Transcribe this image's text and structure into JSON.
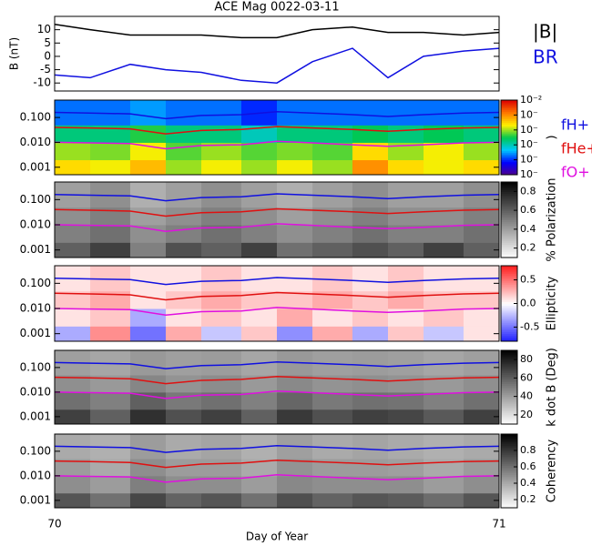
{
  "chart_data": [
    {
      "type": "line",
      "title": "ACE Mag 0022-03-11",
      "ylabel": "B (nT)",
      "x": [
        70,
        70.08,
        70.17,
        70.25,
        70.33,
        70.42,
        70.5,
        70.58,
        70.67,
        70.75,
        70.83,
        70.92,
        71
      ],
      "series": [
        {
          "name": "|B|",
          "color": "#000000",
          "values": [
            12,
            10,
            8,
            8,
            8,
            7,
            7,
            10,
            11,
            9,
            9,
            8,
            9
          ]
        },
        {
          "name": "BR",
          "color": "#1010e0",
          "values": [
            -7,
            -8,
            -3,
            -5,
            -6,
            -9,
            -10,
            -2,
            3,
            -8,
            0,
            2,
            3
          ]
        }
      ],
      "xlim": [
        70,
        71
      ],
      "ylim": [
        -13,
        15
      ],
      "yticks": [
        -10,
        -5,
        0,
        5,
        10
      ]
    },
    {
      "type": "heatmap",
      "colormap": "rainbow",
      "ylog": true,
      "zlog": true,
      "colorbar_label": ")",
      "xbins": [
        70,
        70.08,
        70.17,
        70.25,
        70.33,
        70.42,
        70.5,
        70.58,
        70.67,
        70.75,
        70.83,
        70.92,
        71
      ],
      "ybins": [
        0.0005,
        0.002,
        0.01,
        0.05,
        0.5
      ],
      "z": [
        [
          0.0003,
          0.0002,
          0.0005,
          0.0001,
          0.0002,
          0.0001,
          0.0002,
          0.0001,
          0.001,
          0.0003,
          0.0002,
          0.0003
        ],
        [
          0.0001,
          8e-05,
          0.0002,
          6e-05,
          0.0001,
          6e-05,
          8e-05,
          6e-05,
          0.0003,
          0.0001,
          0.0002,
          0.0001
        ],
        [
          2e-05,
          2e-05,
          4e-05,
          2e-05,
          2e-05,
          1e-05,
          2e-05,
          2e-05,
          3e-05,
          2e-05,
          3e-05,
          2e-05
        ],
        [
          2e-06,
          2e-06,
          3e-06,
          2e-06,
          2e-06,
          1e-06,
          2e-06,
          2e-06,
          2e-06,
          2e-06,
          2e-06,
          2e-06
        ]
      ],
      "zlim": [
        1e-07,
        0.01
      ],
      "zticks": [
        {
          "value": 0.01,
          "label": "10⁻²"
        },
        {
          "value": 0.001,
          "label": "10⁻"
        },
        {
          "value": 0.0001,
          "label": "10⁻"
        },
        {
          "value": 1e-05,
          "label": "10⁻"
        },
        {
          "value": 1e-06,
          "label": "10⁻"
        },
        {
          "value": 1e-07,
          "label": "10⁻"
        }
      ],
      "x": [
        70,
        70.08,
        70.17,
        70.25,
        70.33,
        70.42,
        70.5,
        70.58,
        70.67,
        70.75,
        70.83,
        70.92,
        71
      ],
      "series": [
        {
          "name": "fH+",
          "color": "#1010e0",
          "values": [
            0.16,
            0.15,
            0.14,
            0.09,
            0.12,
            0.13,
            0.17,
            0.15,
            0.13,
            0.11,
            0.13,
            0.15,
            0.16
          ]
        },
        {
          "name": "fHe+",
          "color": "#e01010",
          "values": [
            0.04,
            0.038,
            0.035,
            0.022,
            0.03,
            0.033,
            0.043,
            0.038,
            0.033,
            0.028,
            0.033,
            0.038,
            0.04
          ]
        },
        {
          "name": "fO+",
          "color": "#e010e0",
          "values": [
            0.01,
            0.0095,
            0.009,
            0.0055,
            0.0075,
            0.008,
            0.011,
            0.0095,
            0.008,
            0.007,
            0.008,
            0.0095,
            0.01
          ]
        }
      ],
      "xlim": [
        70,
        71
      ],
      "ylim": [
        0.0005,
        0.5
      ],
      "yticks": [
        0.001,
        {
          "value": 0.01,
          "label": "0.010"
        },
        {
          "value": 0.1,
          "label": "0.100"
        }
      ]
    },
    {
      "type": "heatmap",
      "colormap": "gray",
      "ylog": true,
      "colorbar_label": "% Polarization",
      "xbins": [
        70,
        70.08,
        70.17,
        70.25,
        70.33,
        70.42,
        70.5,
        70.58,
        70.67,
        70.75,
        70.83,
        70.92,
        71
      ],
      "ybins": [
        0.0005,
        0.002,
        0.01,
        0.05,
        0.5
      ],
      "z": [
        [
          0.6,
          0.7,
          0.5,
          0.65,
          0.6,
          0.7,
          0.55,
          0.6,
          0.65,
          0.6,
          0.7,
          0.6
        ],
        [
          0.5,
          0.55,
          0.45,
          0.5,
          0.55,
          0.5,
          0.45,
          0.5,
          0.55,
          0.5,
          0.5,
          0.55
        ],
        [
          0.45,
          0.5,
          0.4,
          0.45,
          0.5,
          0.45,
          0.4,
          0.45,
          0.5,
          0.45,
          0.45,
          0.5
        ],
        [
          0.4,
          0.45,
          0.35,
          0.4,
          0.45,
          0.4,
          0.35,
          0.4,
          0.45,
          0.4,
          0.4,
          0.45
        ]
      ],
      "zlim": [
        0.1,
        0.9
      ],
      "zticks": [
        0.2,
        0.4,
        0.6,
        0.8
      ],
      "x": [
        70,
        70.08,
        70.17,
        70.25,
        70.33,
        70.42,
        70.5,
        70.58,
        70.67,
        70.75,
        70.83,
        70.92,
        71
      ],
      "series": [
        {
          "color": "#1010e0",
          "values": [
            0.16,
            0.15,
            0.14,
            0.09,
            0.12,
            0.13,
            0.17,
            0.15,
            0.13,
            0.11,
            0.13,
            0.15,
            0.16
          ]
        },
        {
          "color": "#e01010",
          "values": [
            0.04,
            0.038,
            0.035,
            0.022,
            0.03,
            0.033,
            0.043,
            0.038,
            0.033,
            0.028,
            0.033,
            0.038,
            0.04
          ]
        },
        {
          "color": "#e010e0",
          "values": [
            0.01,
            0.0095,
            0.009,
            0.0055,
            0.0075,
            0.008,
            0.011,
            0.0095,
            0.008,
            0.007,
            0.008,
            0.0095,
            0.01
          ]
        }
      ],
      "xlim": [
        70,
        71
      ],
      "ylim": [
        0.0005,
        0.5
      ],
      "yticks": [
        0.001,
        {
          "value": 0.01,
          "label": "0.010"
        },
        {
          "value": 0.1,
          "label": "0.100"
        }
      ]
    },
    {
      "type": "heatmap",
      "colormap": "bwr",
      "ylog": true,
      "colorbar_label": "Ellipticity",
      "xbins": [
        70,
        70.08,
        70.17,
        70.25,
        70.33,
        70.42,
        70.5,
        70.58,
        70.67,
        70.75,
        70.83,
        70.92,
        71
      ],
      "ybins": [
        0.0005,
        0.002,
        0.01,
        0.05,
        0.5
      ],
      "z": [
        [
          -0.3,
          0.4,
          -0.5,
          0.3,
          -0.2,
          0.2,
          -0.4,
          0.3,
          -0.3,
          0.2,
          -0.2,
          0.1
        ],
        [
          0.1,
          0.2,
          -0.3,
          0.1,
          0.2,
          0.1,
          0.3,
          0.1,
          0.2,
          0.1,
          0.2,
          0.1
        ],
        [
          0.2,
          0.3,
          0.1,
          0.2,
          0.3,
          0.2,
          0.2,
          0.3,
          0.2,
          0.3,
          0.2,
          0.2
        ],
        [
          0.1,
          0.2,
          0.1,
          0.1,
          0.2,
          0.1,
          0.1,
          0.2,
          0.1,
          0.2,
          0.1,
          0.1
        ]
      ],
      "zlim": [
        -0.8,
        0.8
      ],
      "zticks": [
        -0.5,
        {
          "value": 0,
          "label": "0.0"
        },
        0.5
      ],
      "x": [
        70,
        70.08,
        70.17,
        70.25,
        70.33,
        70.42,
        70.5,
        70.58,
        70.67,
        70.75,
        70.83,
        70.92,
        71
      ],
      "series": [
        {
          "color": "#1010e0",
          "values": [
            0.16,
            0.15,
            0.14,
            0.09,
            0.12,
            0.13,
            0.17,
            0.15,
            0.13,
            0.11,
            0.13,
            0.15,
            0.16
          ]
        },
        {
          "color": "#e01010",
          "values": [
            0.04,
            0.038,
            0.035,
            0.022,
            0.03,
            0.033,
            0.043,
            0.038,
            0.033,
            0.028,
            0.033,
            0.038,
            0.04
          ]
        },
        {
          "color": "#e010e0",
          "values": [
            0.01,
            0.0095,
            0.009,
            0.0055,
            0.0075,
            0.008,
            0.011,
            0.0095,
            0.008,
            0.007,
            0.008,
            0.0095,
            0.01
          ]
        }
      ],
      "xlim": [
        70,
        71
      ],
      "ylim": [
        0.0005,
        0.5
      ],
      "yticks": [
        0.001,
        {
          "value": 0.01,
          "label": "0.010"
        },
        {
          "value": 0.1,
          "label": "0.100"
        }
      ]
    },
    {
      "type": "heatmap",
      "colormap": "gray",
      "ylog": true,
      "colorbar_label": "k dot B (Deg)",
      "xbins": [
        70,
        70.08,
        70.17,
        70.25,
        70.33,
        70.42,
        70.5,
        70.58,
        70.67,
        70.75,
        70.83,
        70.92,
        71
      ],
      "ybins": [
        0.0005,
        0.002,
        0.01,
        0.05,
        0.5
      ],
      "z": [
        [
          70,
          60,
          75,
          65,
          70,
          60,
          72,
          65,
          70,
          68,
          62,
          70
        ],
        [
          55,
          50,
          60,
          52,
          55,
          50,
          58,
          52,
          55,
          54,
          50,
          55
        ],
        [
          45,
          42,
          48,
          44,
          46,
          42,
          47,
          44,
          45,
          44,
          42,
          45
        ],
        [
          40,
          38,
          42,
          40,
          41,
          38,
          42,
          40,
          41,
          40,
          38,
          40
        ]
      ],
      "zlim": [
        10,
        90
      ],
      "zticks": [
        20,
        40,
        60,
        80
      ],
      "x": [
        70,
        70.08,
        70.17,
        70.25,
        70.33,
        70.42,
        70.5,
        70.58,
        70.67,
        70.75,
        70.83,
        70.92,
        71
      ],
      "series": [
        {
          "color": "#1010e0",
          "values": [
            0.16,
            0.15,
            0.14,
            0.09,
            0.12,
            0.13,
            0.17,
            0.15,
            0.13,
            0.11,
            0.13,
            0.15,
            0.16
          ]
        },
        {
          "color": "#e01010",
          "values": [
            0.04,
            0.038,
            0.035,
            0.022,
            0.03,
            0.033,
            0.043,
            0.038,
            0.033,
            0.028,
            0.033,
            0.038,
            0.04
          ]
        },
        {
          "color": "#e010e0",
          "values": [
            0.01,
            0.0095,
            0.009,
            0.0055,
            0.0075,
            0.008,
            0.011,
            0.0095,
            0.008,
            0.007,
            0.008,
            0.0095,
            0.01
          ]
        }
      ],
      "xlim": [
        70,
        71
      ],
      "ylim": [
        0.0005,
        0.5
      ],
      "yticks": [
        0.001,
        {
          "value": 0.01,
          "label": "0.010"
        },
        {
          "value": 0.1,
          "label": "0.100"
        }
      ]
    },
    {
      "type": "heatmap",
      "colormap": "gray",
      "ylog": true,
      "colorbar_label": "Coherency",
      "xlabel": "Day of Year",
      "xbins": [
        70,
        70.08,
        70.17,
        70.25,
        70.33,
        70.42,
        70.5,
        70.58,
        70.67,
        70.75,
        70.83,
        70.92,
        71
      ],
      "ybins": [
        0.0005,
        0.002,
        0.01,
        0.05,
        0.5
      ],
      "z": [
        [
          0.7,
          0.6,
          0.75,
          0.65,
          0.7,
          0.6,
          0.72,
          0.65,
          0.7,
          0.68,
          0.62,
          0.7
        ],
        [
          0.5,
          0.45,
          0.55,
          0.5,
          0.5,
          0.45,
          0.52,
          0.5,
          0.5,
          0.5,
          0.45,
          0.5
        ],
        [
          0.45,
          0.4,
          0.5,
          0.45,
          0.45,
          0.4,
          0.48,
          0.45,
          0.45,
          0.44,
          0.4,
          0.45
        ],
        [
          0.4,
          0.38,
          0.45,
          0.4,
          0.42,
          0.38,
          0.44,
          0.4,
          0.42,
          0.4,
          0.38,
          0.4
        ]
      ],
      "zlim": [
        0.1,
        1
      ],
      "zticks": [
        0.2,
        0.4,
        0.6,
        0.8
      ],
      "x": [
        70,
        70.08,
        70.17,
        70.25,
        70.33,
        70.42,
        70.5,
        70.58,
        70.67,
        70.75,
        70.83,
        70.92,
        71
      ],
      "series": [
        {
          "color": "#1010e0",
          "values": [
            0.16,
            0.15,
            0.14,
            0.09,
            0.12,
            0.13,
            0.17,
            0.15,
            0.13,
            0.11,
            0.13,
            0.15,
            0.16
          ]
        },
        {
          "color": "#e01010",
          "values": [
            0.04,
            0.038,
            0.035,
            0.022,
            0.03,
            0.033,
            0.043,
            0.038,
            0.033,
            0.028,
            0.033,
            0.038,
            0.04
          ]
        },
        {
          "color": "#e010e0",
          "values": [
            0.01,
            0.0095,
            0.009,
            0.0055,
            0.0075,
            0.008,
            0.011,
            0.0095,
            0.008,
            0.007,
            0.008,
            0.0095,
            0.01
          ]
        }
      ],
      "xlim": [
        70,
        71
      ],
      "ylim": [
        0.0005,
        0.5
      ],
      "xticks": [
        70,
        71
      ],
      "yticks": [
        0.001,
        {
          "value": 0.01,
          "label": "0.010"
        },
        {
          "value": 0.1,
          "label": "0.100"
        }
      ]
    }
  ]
}
